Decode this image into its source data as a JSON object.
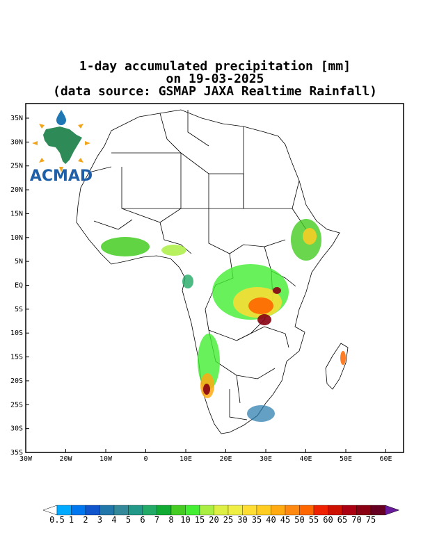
{
  "title": {
    "line1": "1-day accumulated precipitation [mm]",
    "line2": "on 19-03-2025",
    "line3": "(data source: GSMAP JAXA Realtime Rainfall)"
  },
  "map": {
    "lat_ticks": [
      "35N",
      "30N",
      "25N",
      "20N",
      "15N",
      "10N",
      "5N",
      "EQ",
      "5S",
      "10S",
      "15S",
      "20S",
      "25S",
      "30S",
      "35S"
    ],
    "lon_ticks": [
      "30W",
      "20W",
      "10W",
      "0",
      "10E",
      "20E",
      "30E",
      "40E",
      "50E",
      "60E"
    ],
    "lon_range": [
      -30,
      65
    ],
    "lat_range": [
      -35,
      37
    ]
  },
  "logo": {
    "text": "ACMAD",
    "colors": {
      "africa": "#2e8b57",
      "sun": "#f2a51a",
      "drop": "#1f78b4",
      "text": "#1f5fa8"
    }
  },
  "colorbar": {
    "labels": [
      "0.5",
      "1",
      "2",
      "3",
      "4",
      "5",
      "6",
      "7",
      "8",
      "10",
      "15",
      "20",
      "25",
      "30",
      "35",
      "40",
      "45",
      "50",
      "55",
      "60",
      "65",
      "70",
      "75"
    ],
    "colors": [
      "#00aaff",
      "#0077ee",
      "#1155cc",
      "#2277aa",
      "#338899",
      "#229988",
      "#22aa66",
      "#11aa33",
      "#44cc22",
      "#44ee33",
      "#aaee44",
      "#ddee44",
      "#eeee44",
      "#ffdd33",
      "#ffcc22",
      "#ffaa11",
      "#ff8811",
      "#ff6600",
      "#ee2200",
      "#cc1100",
      "#aa0011",
      "#880011",
      "#660022"
    ],
    "low_arrow": "#ffffff",
    "high_arrow": "#6a1b9a"
  }
}
